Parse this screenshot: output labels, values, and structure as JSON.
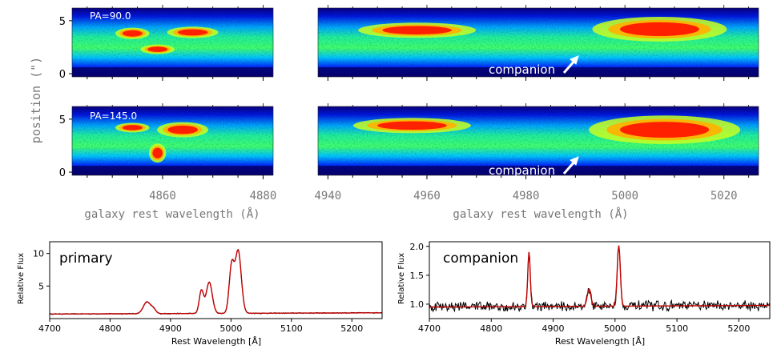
{
  "chart_data": [
    {
      "type": "heatmap",
      "panel": "2d-spectrum-hbeta-pa90",
      "x_range": [
        4842,
        4882
      ],
      "y_range": [
        -0.3,
        6.2
      ],
      "xticks": [],
      "yticks": [
        0,
        5
      ],
      "ylabel": "position (\")",
      "annotation": "PA=90.0",
      "blobs": [
        {
          "x": 4854,
          "y": 3.8,
          "w": 4,
          "h": 0.6
        },
        {
          "x": 4866,
          "y": 3.9,
          "w": 6,
          "h": 0.6
        },
        {
          "x": 4859,
          "y": 2.3,
          "w": 4,
          "h": 0.5
        }
      ]
    },
    {
      "type": "heatmap",
      "panel": "2d-spectrum-oiii-pa90",
      "x_range": [
        4938,
        5027
      ],
      "y_range": [
        -0.3,
        6.2
      ],
      "xticks": [],
      "yticks": [],
      "annotation": "companion",
      "blobs": [
        {
          "x": 4958,
          "y": 4.1,
          "w": 14,
          "h": 0.8
        },
        {
          "x": 5007,
          "y": 4.2,
          "w": 16,
          "h": 1.3
        }
      ]
    },
    {
      "type": "heatmap",
      "panel": "2d-spectrum-hbeta-pa145",
      "x_range": [
        4842,
        4882
      ],
      "y_range": [
        -0.3,
        6.2
      ],
      "xticks": [
        4860,
        4880
      ],
      "yticks": [
        0,
        5
      ],
      "annotation": "PA=145.0",
      "blobs": [
        {
          "x": 4854,
          "y": 4.2,
          "w": 4,
          "h": 0.5
        },
        {
          "x": 4864,
          "y": 4.0,
          "w": 6,
          "h": 0.8
        },
        {
          "x": 4859,
          "y": 1.8,
          "w": 2,
          "h": 1.0
        }
      ]
    },
    {
      "type": "heatmap",
      "panel": "2d-spectrum-oiii-pa145",
      "x_range": [
        4938,
        5027
      ],
      "y_range": [
        -0.3,
        6.2
      ],
      "xticks": [
        4940,
        4960,
        4980,
        5000,
        5020
      ],
      "yticks": [],
      "annotation": "companion",
      "blobs": [
        {
          "x": 4957,
          "y": 4.4,
          "w": 14,
          "h": 0.8
        },
        {
          "x": 5008,
          "y": 4.0,
          "w": 18,
          "h": 1.5
        }
      ]
    },
    {
      "type": "line",
      "panel": "primary-spectrum",
      "title": "primary",
      "xlabel": "Rest Wavelength [Å]",
      "ylabel": "Relative Flux",
      "x_range": [
        4700,
        5250
      ],
      "y_range": [
        0,
        11.8
      ],
      "xticks": [
        4700,
        4800,
        4900,
        5000,
        5100,
        5200
      ],
      "yticks": [
        5,
        10
      ],
      "baseline": 0.7,
      "lines": [
        {
          "center": 4861,
          "amp": 1.8,
          "width": 6
        },
        {
          "center": 4872,
          "amp": 0.6,
          "width": 4
        },
        {
          "center": 4951,
          "amp": 3.5,
          "width": 3.5
        },
        {
          "center": 4964,
          "amp": 4.8,
          "width": 5
        },
        {
          "center": 5001,
          "amp": 7.2,
          "width": 4
        },
        {
          "center": 5012,
          "amp": 9.6,
          "width": 5
        }
      ],
      "series": [
        {
          "name": "data",
          "color": "#000000"
        },
        {
          "name": "model",
          "color": "#c00000"
        }
      ]
    },
    {
      "type": "line",
      "panel": "companion-spectrum",
      "title": "companion",
      "xlabel": "Rest Wavelength [Å]",
      "ylabel": "Relative Flux",
      "x_range": [
        4700,
        5250
      ],
      "y_range": [
        0.75,
        2.08
      ],
      "xticks": [
        4700,
        4800,
        4900,
        5000,
        5100,
        5200
      ],
      "yticks": [
        1.0,
        1.5,
        2.0
      ],
      "baseline": 0.95,
      "lines": [
        {
          "center": 4861,
          "amp": 0.95,
          "width": 2
        },
        {
          "center": 4958,
          "amp": 0.3,
          "width": 3
        },
        {
          "center": 5006,
          "amp": 1.05,
          "width": 2.5
        }
      ],
      "series": [
        {
          "name": "data",
          "color": "#000000"
        },
        {
          "name": "model",
          "color": "#c00000"
        }
      ]
    }
  ],
  "labels": {
    "position": "position (\")",
    "galaxy_wavelength": "galaxy rest wavelength (Å)",
    "pa1": "PA=90.0",
    "pa2": "PA=145.0",
    "companion": "companion",
    "primary": "primary",
    "companion_title": "companion",
    "rest_wavelength": "Rest Wavelength [Å]",
    "relative_flux": "Relative Flux"
  },
  "colors": {
    "colormap": [
      "#00007a",
      "#0000d0",
      "#0060ff",
      "#00c8ff",
      "#30ff90",
      "#c8ff20",
      "#ffb000",
      "#ff2000"
    ],
    "data_line": "#000000",
    "model_line": "#c00000"
  }
}
